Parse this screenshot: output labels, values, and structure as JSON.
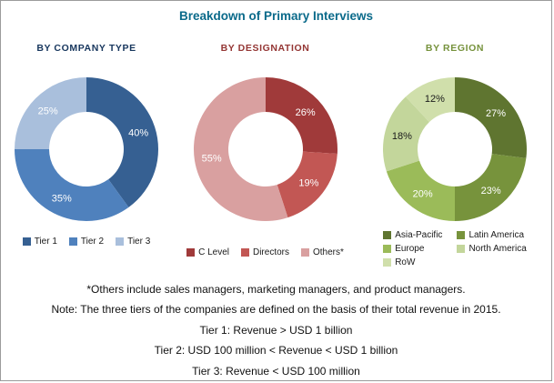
{
  "title": "Breakdown of Primary Interviews",
  "colors": {
    "title": "#0A6A8A",
    "frame_border": "#9B9B9B",
    "note_text": "#111111"
  },
  "chart_data": [
    {
      "type": "pie",
      "donut": true,
      "title": "BY COMPANY TYPE",
      "title_color": "#17365D",
      "unit": "%",
      "legend_position": "bottom",
      "legend_columns": 3,
      "slices": [
        {
          "label": "Tier 1",
          "value": 40,
          "color": "#366092",
          "label_color": "#FFFFFF"
        },
        {
          "label": "Tier 2",
          "value": 35,
          "color": "#4F81BD",
          "label_color": "#FFFFFF"
        },
        {
          "label": "Tier 3",
          "value": 25,
          "color": "#A9BFDC",
          "label_color": "#FFFFFF"
        }
      ]
    },
    {
      "type": "pie",
      "donut": true,
      "title": "BY DESIGNATION",
      "title_color": "#943634",
      "unit": "%",
      "legend_position": "bottom",
      "legend_columns": 3,
      "slices": [
        {
          "label": "C Level",
          "value": 26,
          "color": "#A03A3A",
          "label_color": "#FFFFFF"
        },
        {
          "label": "Directors",
          "value": 19,
          "color": "#C25754",
          "label_color": "#FFFFFF"
        },
        {
          "label": "Others*",
          "value": 55,
          "color": "#D9A0A0",
          "label_color": "#FFFFFF"
        }
      ]
    },
    {
      "type": "pie",
      "donut": true,
      "title": "BY REGION",
      "title_color": "#76923C",
      "unit": "%",
      "legend_position": "bottom",
      "legend_columns": 2,
      "slices": [
        {
          "label": "Asia-Pacific",
          "value": 27,
          "color": "#5F7530",
          "label_color": "#FFFFFF"
        },
        {
          "label": "Latin America",
          "value": 23,
          "color": "#77933C",
          "label_color": "#FFFFFF"
        },
        {
          "label": "Europe",
          "value": 20,
          "color": "#9BBB59",
          "label_color": "#FFFFFF"
        },
        {
          "label": "North America",
          "value": 18,
          "color": "#C3D69B",
          "label_color": "#1A1A1A"
        },
        {
          "label": "RoW",
          "value": 12,
          "color": "#D0DFAB",
          "label_color": "#1A1A1A"
        }
      ]
    }
  ],
  "notes": [
    "*Others include sales managers, marketing managers, and product managers.",
    "Note: The three tiers of the companies are defined on the basis of their total revenue in 2015.",
    "Tier 1: Revenue > USD 1 billion",
    "Tier 2: USD 100 million < Revenue < USD 1 billion",
    "Tier 3: Revenue < USD 100 million"
  ]
}
